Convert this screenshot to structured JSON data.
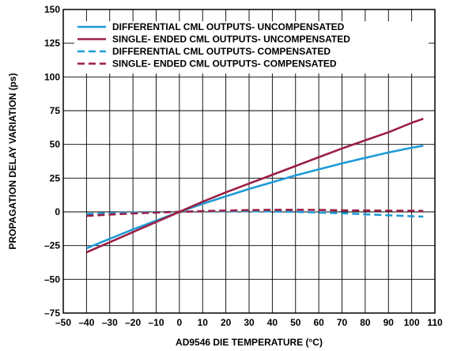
{
  "chart_data": {
    "type": "line",
    "title": "",
    "xlabel": "AD9546 DIE TEMPERATURE (°C)",
    "ylabel": "PROPAGATION DELAY VARIATION (ps)",
    "xlim": [
      -50,
      110
    ],
    "ylim": [
      -75,
      150
    ],
    "x_ticks": [
      -50,
      -40,
      -30,
      -20,
      -10,
      0,
      10,
      20,
      30,
      40,
      50,
      60,
      70,
      80,
      90,
      100,
      110
    ],
    "y_ticks": [
      -75,
      -50,
      -25,
      0,
      25,
      50,
      75,
      100,
      125,
      150
    ],
    "grid": true,
    "legend_position": "top-left",
    "series": [
      {
        "name": "DIFFERENTIAL CML OUTPUTS- UNCOMPENSATED",
        "color": "#1e9bd7",
        "dash": "solid",
        "x": [
          -40,
          -30,
          -20,
          -10,
          0,
          10,
          20,
          30,
          40,
          50,
          60,
          70,
          80,
          90,
          100,
          105
        ],
        "y": [
          -27,
          -20,
          -13,
          -6.5,
          0,
          6,
          11.5,
          17,
          22,
          27,
          31.5,
          36,
          40,
          44,
          47.5,
          49
        ]
      },
      {
        "name": "SINGLE- ENDED CML OUTPUTS- UNCOMPENSATED",
        "color": "#9b1f45",
        "dash": "solid",
        "x": [
          -40,
          -30,
          -20,
          -10,
          0,
          10,
          20,
          30,
          40,
          50,
          60,
          70,
          80,
          90,
          100,
          105
        ],
        "y": [
          -30,
          -22.5,
          -15,
          -7.5,
          0,
          7.5,
          14.5,
          21,
          27.5,
          34,
          40.5,
          47,
          53,
          59,
          66,
          69
        ]
      },
      {
        "name": "DIFFERENTIAL CML OUTPUTS- COMPENSATED",
        "color": "#1e9bd7",
        "dash": "dashed",
        "x": [
          -40,
          -30,
          -20,
          -10,
          0,
          10,
          20,
          30,
          40,
          50,
          60,
          70,
          80,
          90,
          100,
          105
        ],
        "y": [
          -1.5,
          -1,
          -0.5,
          -0.2,
          0,
          0.3,
          0.5,
          0.5,
          0.3,
          0,
          -0.5,
          -1,
          -1.8,
          -2.5,
          -3.2,
          -3.5
        ]
      },
      {
        "name": "SINGLE- ENDED CML OUTPUTS- COMPENSATED",
        "color": "#9b1f45",
        "dash": "dashed",
        "x": [
          -40,
          -30,
          -20,
          -10,
          0,
          10,
          20,
          30,
          40,
          50,
          60,
          70,
          80,
          90,
          100,
          105
        ],
        "y": [
          -3,
          -2,
          -1.2,
          -0.5,
          0,
          0.5,
          1,
          1.3,
          1.5,
          1.5,
          1.4,
          1.2,
          1,
          0.9,
          0.8,
          0.7
        ]
      }
    ]
  }
}
